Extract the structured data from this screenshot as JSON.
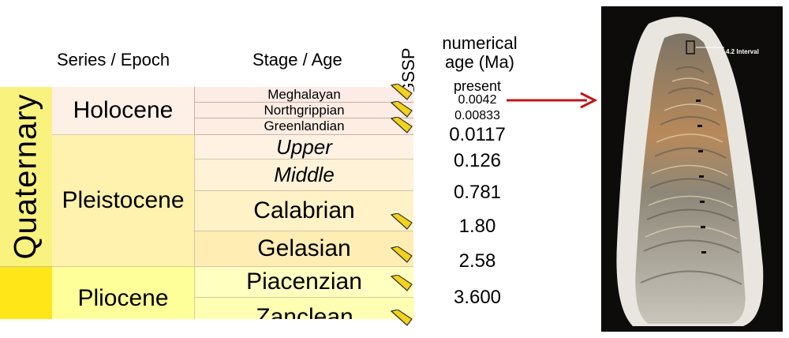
{
  "headers": {
    "series_epoch": "Series / Epoch",
    "stage_age": "Stage / Age",
    "gssp": "GSSP",
    "numerical_age": "numerical age (Ma)"
  },
  "system": {
    "quaternary": "Quaternary"
  },
  "epochs": {
    "holocene": "Holocene",
    "pleistocene": "Pleistocene",
    "pliocene": "Pliocene"
  },
  "stages": {
    "meghalayan": "Meghalayan",
    "northgrippian": "Northgrippian",
    "greenlandian": "Greenlandian",
    "upper": "Upper",
    "middle": "Middle",
    "calabrian": "Calabrian",
    "gelasian": "Gelasian",
    "piacenzian": "Piacenzian",
    "zanclean": "Zanclean"
  },
  "ages": {
    "present": "present",
    "a0042": "0.0042",
    "a00833": "0.00833",
    "a0117": "0.0117",
    "a126": "0.126",
    "a781": "0.781",
    "a180": "1.80",
    "a258": "2.58",
    "a3600": "3.600"
  },
  "photo": {
    "label": "4.2 Interval"
  },
  "colors": {
    "quaternary": "#f9f27f",
    "holocene": "#fdf0e6",
    "pleistocene": "#fff2ae",
    "pliocene": "#ffff99",
    "neogene_system": "#ffe619",
    "gssp_spike": "#f2d21a",
    "arrow": "#c0171a"
  }
}
